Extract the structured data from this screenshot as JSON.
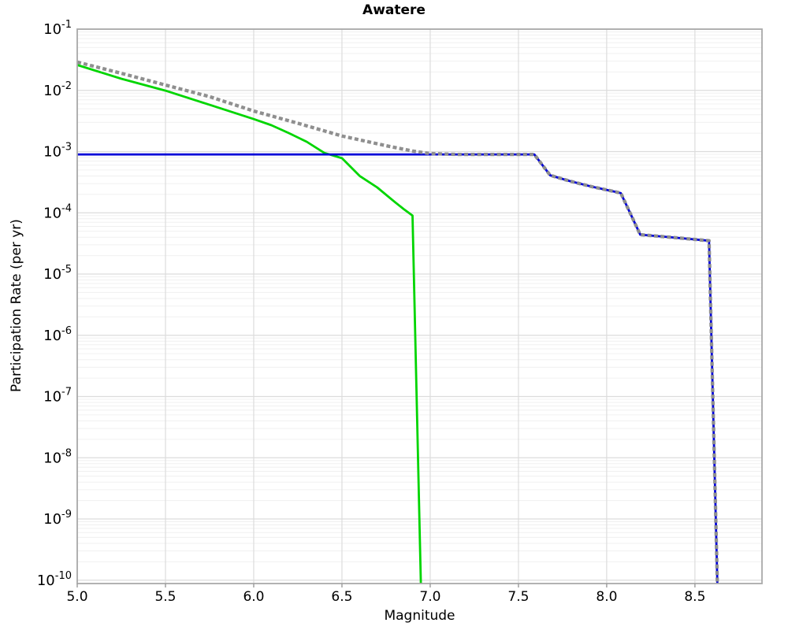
{
  "chart_data": {
    "type": "line",
    "title": "Awatere",
    "xlabel": "Magnitude",
    "ylabel": "Participation Rate (per yr)",
    "x_axis": {
      "min": 5.0,
      "max": 8.88,
      "scale": "linear",
      "ticks": [
        5.0,
        5.5,
        6.0,
        6.5,
        7.0,
        7.5,
        8.0,
        8.5
      ],
      "tick_labels": [
        "5.0",
        "5.5",
        "6.0",
        "6.5",
        "7.0",
        "7.5",
        "8.0",
        "8.5"
      ]
    },
    "y_axis": {
      "scale": "log",
      "max": 0.1,
      "min": 1e-10,
      "tick_exponents": [
        -1,
        -2,
        -3,
        -4,
        -5,
        -6,
        -7,
        -8,
        -9,
        -10
      ],
      "tick_base": "10"
    },
    "grid": {
      "vertical_major": true,
      "horizontal_major": true,
      "horizontal_log_minor": true
    },
    "legend": "none",
    "colors": {
      "green_series": "#00d500",
      "gray_dotted_series": "#8f8f8f",
      "blue_series": "#0000d8",
      "grid_minor": "#f0f0f0",
      "grid_major": "#dcdcdc",
      "frame": "#a9a9a9",
      "text": "#000000"
    },
    "series": [
      {
        "name": "green-solid-curve",
        "color": "#00d500",
        "style": "solid",
        "stroke_width": 2.8,
        "points": [
          [
            5.0,
            0.026
          ],
          [
            5.25,
            0.0155
          ],
          [
            5.5,
            0.0099
          ],
          [
            5.75,
            0.0058
          ],
          [
            6.0,
            0.0034
          ],
          [
            6.1,
            0.0027
          ],
          [
            6.2,
            0.002
          ],
          [
            6.3,
            0.00145
          ],
          [
            6.4,
            0.00095
          ],
          [
            6.5,
            0.00078
          ],
          [
            6.6,
            0.0004
          ],
          [
            6.7,
            0.00026
          ],
          [
            6.8,
            0.00015
          ],
          [
            6.85,
            0.000115
          ],
          [
            6.9,
            9e-05
          ],
          [
            6.95,
            4e-11
          ]
        ]
      },
      {
        "name": "blue-solid-curve",
        "color": "#0000d8",
        "style": "solid",
        "stroke_width": 2.8,
        "points": [
          [
            5.0,
            0.0009
          ],
          [
            7.59,
            0.0009
          ],
          [
            7.68,
            0.00041
          ],
          [
            7.79,
            0.00033
          ],
          [
            7.91,
            0.00027
          ],
          [
            8.05,
            0.00022
          ],
          [
            8.08,
            0.00021
          ],
          [
            8.19,
            4.4e-05
          ],
          [
            8.4,
            3.9e-05
          ],
          [
            8.58,
            3.5e-05
          ],
          [
            8.63,
            4e-11
          ]
        ]
      },
      {
        "name": "gray-dotted-curve",
        "color": "#8f8f8f",
        "style": "dotted",
        "stroke_width": 4.3,
        "points": [
          [
            5.0,
            0.029
          ],
          [
            5.25,
            0.019
          ],
          [
            5.5,
            0.0122
          ],
          [
            5.75,
            0.0079
          ],
          [
            6.0,
            0.0046
          ],
          [
            6.25,
            0.0029
          ],
          [
            6.5,
            0.0018
          ],
          [
            6.75,
            0.00125
          ],
          [
            6.9,
            0.00102
          ],
          [
            7.0,
            0.00093
          ],
          [
            7.15,
            0.0009
          ],
          [
            7.59,
            0.0009
          ],
          [
            7.68,
            0.00041
          ],
          [
            7.79,
            0.00033
          ],
          [
            7.91,
            0.00027
          ],
          [
            8.05,
            0.00022
          ],
          [
            8.08,
            0.00021
          ],
          [
            8.19,
            4.4e-05
          ],
          [
            8.4,
            3.9e-05
          ],
          [
            8.58,
            3.5e-05
          ],
          [
            8.63,
            4e-11
          ]
        ]
      }
    ]
  }
}
